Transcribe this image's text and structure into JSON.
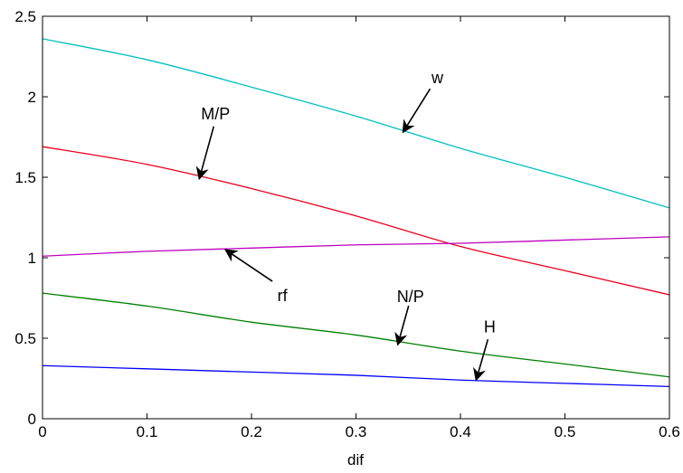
{
  "chart_data": {
    "type": "line",
    "title": "",
    "xlabel": "dif",
    "ylabel": "",
    "xlim": [
      0,
      0.6
    ],
    "ylim": [
      0,
      2.5
    ],
    "grid": false,
    "x": [
      0,
      0.1,
      0.2,
      0.3,
      0.4,
      0.5,
      0.6
    ],
    "xticks": [
      "0",
      "0.1",
      "0.2",
      "0.3",
      "0.4",
      "0.5",
      "0.6"
    ],
    "yticks": [
      "0",
      "0.5",
      "1",
      "1.5",
      "2",
      "2.5"
    ],
    "series": [
      {
        "name": "w",
        "color": "#00BFBF",
        "values": [
          2.36,
          2.23,
          2.06,
          1.88,
          1.68,
          1.5,
          1.31
        ]
      },
      {
        "name": "M/P",
        "color": "#E8001C",
        "values": [
          1.69,
          1.58,
          1.43,
          1.26,
          1.07,
          0.92,
          0.77
        ]
      },
      {
        "name": "rf",
        "color": "#BF00BF",
        "values": [
          1.01,
          1.04,
          1.06,
          1.08,
          1.09,
          1.11,
          1.13
        ]
      },
      {
        "name": "N/P",
        "color": "#007F00",
        "values": [
          0.78,
          0.7,
          0.6,
          0.52,
          0.42,
          0.34,
          0.26
        ]
      },
      {
        "name": "H",
        "color": "#0000FF",
        "values": [
          0.33,
          0.31,
          0.29,
          0.27,
          0.24,
          0.22,
          0.2
        ]
      }
    ],
    "annotations": [
      {
        "text": "w",
        "series": "w",
        "point_x": 0.345,
        "point_y": 1.78
      },
      {
        "text": "M/P",
        "series": "M/P",
        "point_x": 0.15,
        "point_y": 1.49
      },
      {
        "text": "rf",
        "series": "rf",
        "point_x": 0.175,
        "point_y": 1.05
      },
      {
        "text": "N/P",
        "series": "N/P",
        "point_x": 0.34,
        "point_y": 0.46
      },
      {
        "text": "H",
        "series": "H",
        "point_x": 0.415,
        "point_y": 0.24
      }
    ]
  }
}
